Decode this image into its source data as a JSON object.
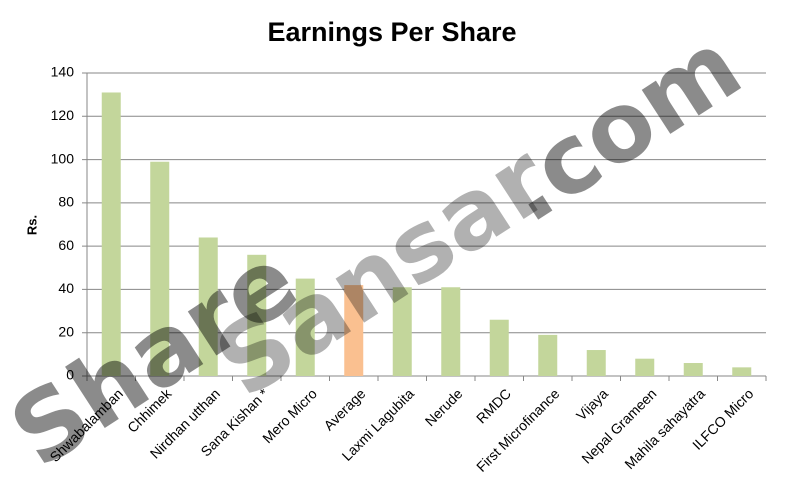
{
  "chart_data": {
    "type": "bar",
    "title": "Earnings Per Share",
    "y_label": "Rs.",
    "categories": [
      "Shwabalamban",
      "Chhimek",
      "Nirdhan utthan",
      "Sana Kishan *",
      "Mero Micro",
      "Average",
      "Laxmi Lagubita",
      "Nerude",
      "RMDC",
      "First Microfinance",
      "Vijaya",
      "Nepal Grameen",
      "Mahila sahayatra",
      "ILFCO Micro"
    ],
    "values": [
      131,
      99,
      64,
      56,
      45,
      42,
      41,
      41,
      26,
      19,
      12,
      8,
      6,
      4
    ],
    "colors": [
      "#c3d69b",
      "#c3d69b",
      "#c3d69b",
      "#c3d69b",
      "#c3d69b",
      "#fac090",
      "#c3d69b",
      "#c3d69b",
      "#c3d69b",
      "#c3d69b",
      "#c3d69b",
      "#c3d69b",
      "#c3d69b",
      "#c3d69b"
    ],
    "ylim": [
      0,
      140
    ],
    "yticks": [
      0,
      20,
      40,
      60,
      80,
      100,
      120,
      140
    ],
    "grid": true,
    "watermark": [
      "Share",
      "Sansar",
      ".com"
    ]
  }
}
